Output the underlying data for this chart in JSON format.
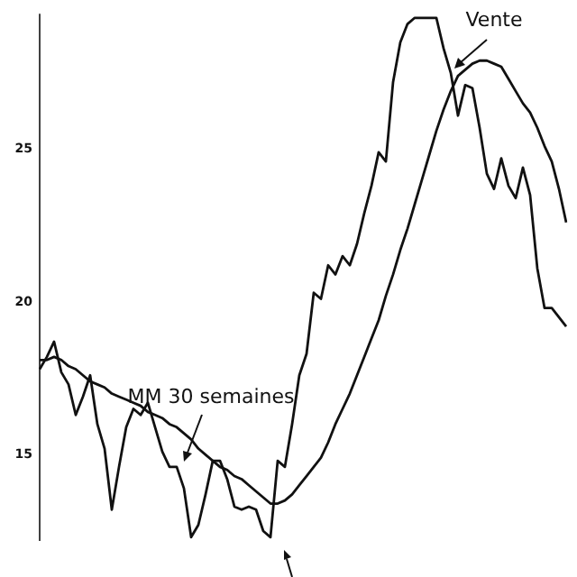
{
  "chart_data": {
    "type": "line",
    "categories": [
      null,
      null,
      null,
      null,
      null,
      null,
      null,
      null,
      null,
      null,
      null,
      null,
      null,
      null,
      null,
      null,
      null,
      null,
      null,
      null,
      null,
      null,
      null,
      null,
      null,
      null,
      null,
      null,
      null,
      null,
      null,
      null,
      null,
      null,
      null,
      null,
      null,
      null,
      null,
      null,
      null,
      null,
      null,
      null,
      null,
      null,
      null,
      null,
      null,
      null,
      null,
      null,
      null,
      null,
      null,
      null,
      null,
      null,
      null,
      null,
      null,
      null,
      null,
      null,
      null,
      null,
      null,
      null,
      null,
      null,
      null,
      null,
      null,
      null
    ],
    "ylim": [
      12.2,
      29.4
    ],
    "yticks": [
      15,
      20,
      25
    ],
    "grid": false,
    "legend": false,
    "marker": "none",
    "line_style": "solid",
    "series": [
      {
        "color": "#111111",
        "values": [
          17.8,
          18.2,
          18.7,
          17.7,
          17.3,
          16.3,
          16.9,
          17.6,
          16.0,
          15.2,
          13.2,
          14.6,
          15.9,
          16.5,
          16.3,
          16.7,
          15.9,
          15.1,
          14.6,
          14.6,
          13.9,
          12.3,
          12.7,
          13.7,
          14.8,
          14.8,
          14.2,
          13.3,
          13.2,
          13.3,
          13.2,
          12.5,
          12.3,
          14.8,
          14.6,
          16.0,
          17.6,
          18.3,
          20.3,
          20.1,
          21.2,
          20.9,
          21.5,
          21.2,
          21.9,
          22.9,
          23.8,
          24.9,
          24.6,
          27.2,
          28.5,
          29.1,
          29.3,
          29.3,
          29.3,
          29.3,
          28.3,
          27.5,
          26.1,
          27.1,
          27.0,
          25.7,
          24.2,
          23.7,
          24.7,
          23.8,
          23.4,
          24.4,
          23.5,
          21.1,
          19.8,
          19.8,
          19.5,
          19.2
        ]
      },
      {
        "color": "#111111",
        "values": [
          18.1,
          18.1,
          18.2,
          18.1,
          17.9,
          17.8,
          17.6,
          17.4,
          17.3,
          17.2,
          17.0,
          16.9,
          16.8,
          16.7,
          16.6,
          16.4,
          16.3,
          16.2,
          16.0,
          15.9,
          15.7,
          15.5,
          15.2,
          15.0,
          14.8,
          14.6,
          14.5,
          14.3,
          14.2,
          14.0,
          13.8,
          13.6,
          13.4,
          13.4,
          13.5,
          13.7,
          14.0,
          14.3,
          14.6,
          14.9,
          15.4,
          16.0,
          16.5,
          17.0,
          17.6,
          18.2,
          18.8,
          19.4,
          20.2,
          20.9,
          21.7,
          22.4,
          23.2,
          24.0,
          24.8,
          25.6,
          26.3,
          26.9,
          27.4,
          27.6,
          27.8,
          27.9,
          27.9,
          27.8,
          27.7,
          27.3,
          26.9,
          26.5,
          26.2,
          25.7,
          25.1,
          24.6,
          23.7,
          22.6
        ]
      }
    ],
    "annotations": [
      "Vente",
      "MM 30 semaines"
    ]
  }
}
